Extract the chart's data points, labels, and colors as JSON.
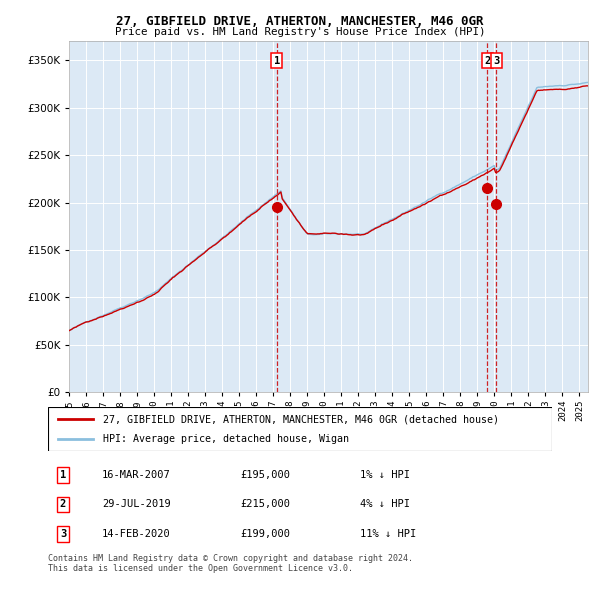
{
  "title": "27, GIBFIELD DRIVE, ATHERTON, MANCHESTER, M46 0GR",
  "subtitle": "Price paid vs. HM Land Registry's House Price Index (HPI)",
  "legend_line1": "27, GIBFIELD DRIVE, ATHERTON, MANCHESTER, M46 0GR (detached house)",
  "legend_line2": "HPI: Average price, detached house, Wigan",
  "sale1_date": "16-MAR-2007",
  "sale1_price": "£195,000",
  "sale1_hpi": "1% ↓ HPI",
  "sale1_x": 2007.21,
  "sale1_y": 195000,
  "sale2_date": "29-JUL-2019",
  "sale2_price": "£215,000",
  "sale2_hpi": "4% ↓ HPI",
  "sale2_x": 2019.58,
  "sale2_y": 215000,
  "sale3_date": "14-FEB-2020",
  "sale3_price": "£199,000",
  "sale3_hpi": "11% ↓ HPI",
  "sale3_x": 2020.12,
  "sale3_y": 199000,
  "xlim": [
    1995,
    2025.5
  ],
  "ylim": [
    0,
    370000
  ],
  "yticks": [
    0,
    50000,
    100000,
    150000,
    200000,
    250000,
    300000,
    350000
  ],
  "background_color": "#dce9f5",
  "grid_color": "#ffffff",
  "hpi_line_color": "#8bbfde",
  "price_line_color": "#cc0000",
  "sale_dot_color": "#cc0000",
  "vline_color": "#cc0000",
  "footer": "Contains HM Land Registry data © Crown copyright and database right 2024.\nThis data is licensed under the Open Government Licence v3.0."
}
